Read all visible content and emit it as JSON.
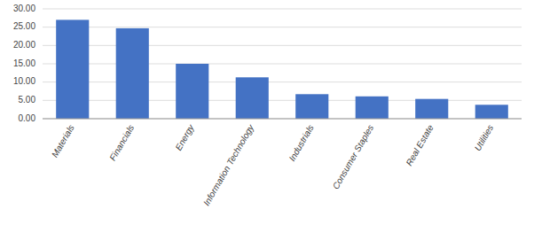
{
  "chart_data": {
    "type": "bar",
    "categories": [
      "Materials",
      "Financials",
      "Energy",
      "Information Technology",
      "Industrials",
      "Consumer Staples",
      "Real Estate",
      "Utilities"
    ],
    "values": [
      27.0,
      24.7,
      15.0,
      11.3,
      6.7,
      6.1,
      5.4,
      3.8
    ],
    "color": "#4472c4",
    "ylim": [
      0,
      30
    ],
    "yticks": [
      {
        "value": 0.0,
        "label": "0.00"
      },
      {
        "value": 5.0,
        "label": "5.00"
      },
      {
        "value": 10.0,
        "label": "10.00"
      },
      {
        "value": 15.0,
        "label": "15.00"
      },
      {
        "value": 20.0,
        "label": "20.00"
      },
      {
        "value": 25.0,
        "label": "25.00"
      },
      {
        "value": 30.0,
        "label": "30.00"
      }
    ],
    "grid": true
  }
}
